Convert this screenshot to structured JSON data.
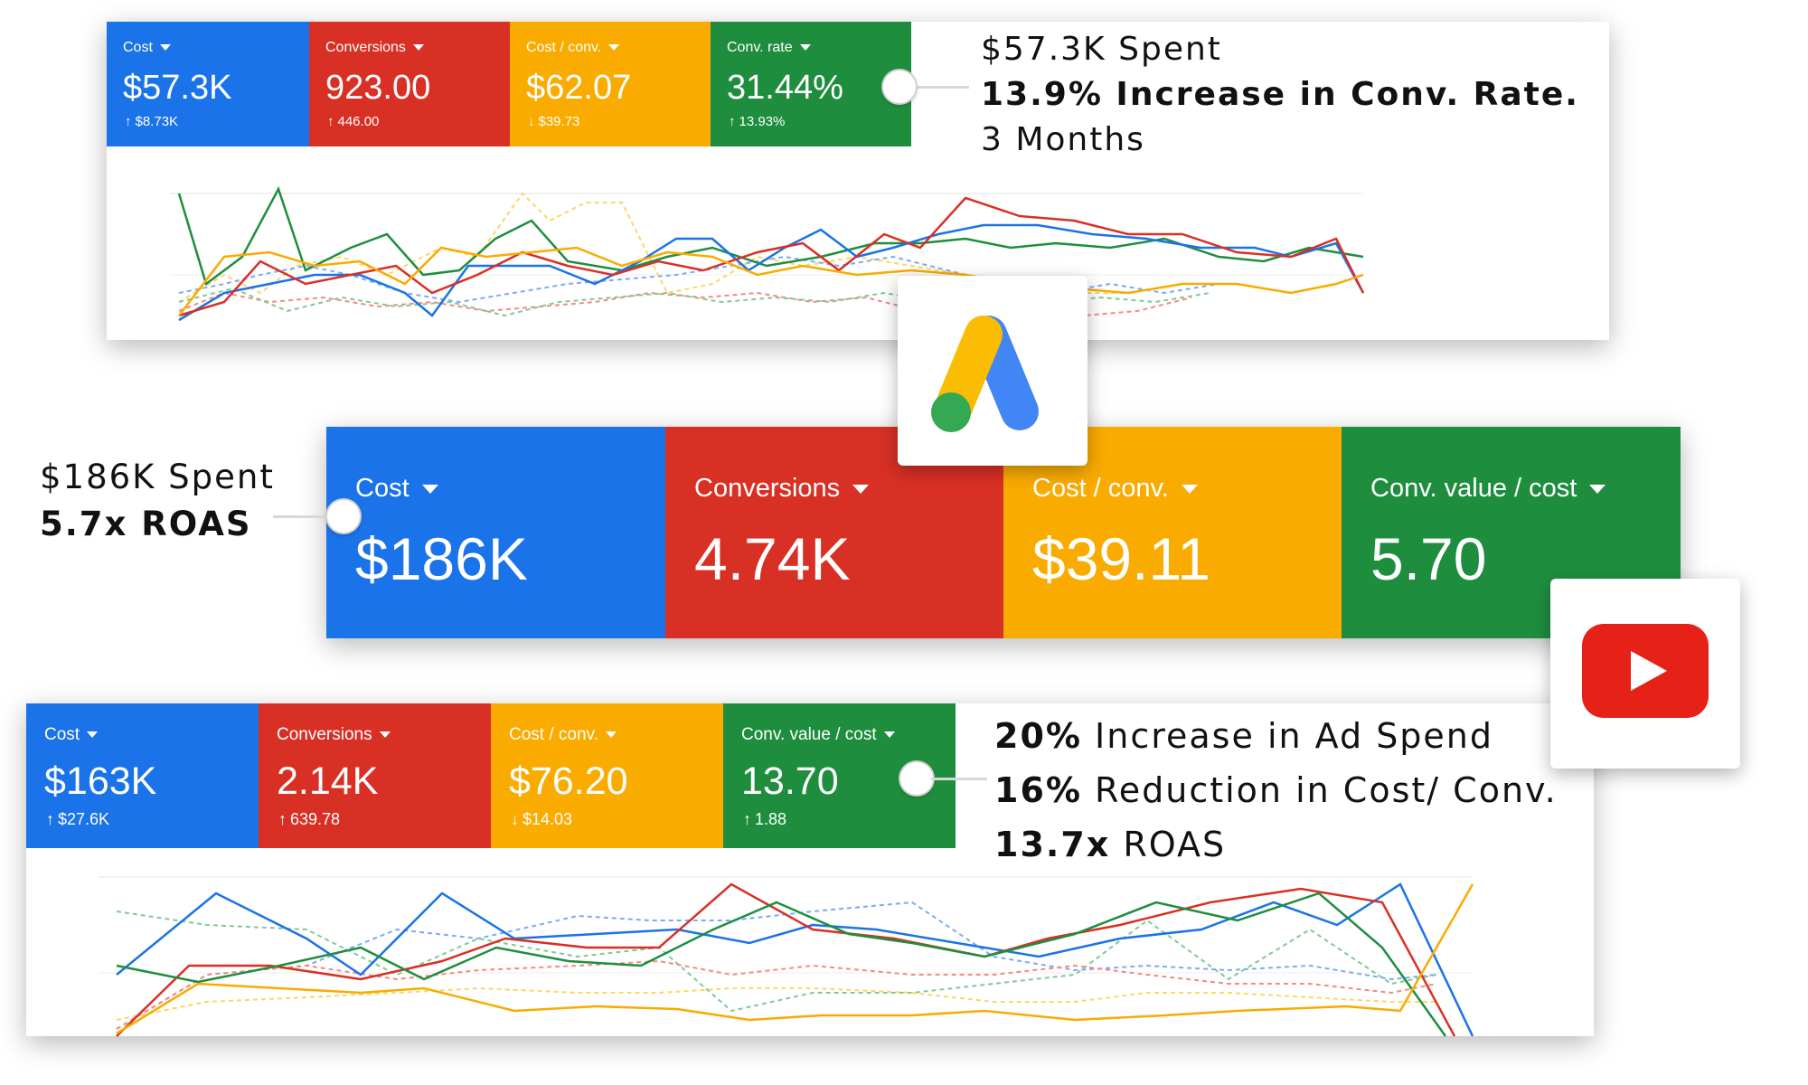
{
  "panel1": {
    "tiles": [
      {
        "label": "Cost",
        "value": "$57.3K",
        "change": "$8.73K",
        "dir": "up",
        "color": "#1a73e8"
      },
      {
        "label": "Conversions",
        "value": "923.00",
        "change": "446.00",
        "dir": "up",
        "color": "#d93025"
      },
      {
        "label": "Cost / conv.",
        "value": "$62.07",
        "change": "$39.73",
        "dir": "down",
        "color": "#f9ab00"
      },
      {
        "label": "Conv. rate",
        "value": "31.44%",
        "change": "13.93%",
        "dir": "up",
        "color": "#1e8e3e"
      }
    ],
    "annotation": {
      "line1": "$57.3K Spent",
      "line2": "13.9% Increase in Conv. Rate.",
      "line3": "3 Months"
    }
  },
  "panel2": {
    "tiles": [
      {
        "label": "Cost",
        "value": "$186K",
        "color": "#1a73e8"
      },
      {
        "label": "Conversions",
        "value": "4.74K",
        "color": "#d93025"
      },
      {
        "label": "Cost / conv.",
        "value": "$39.11",
        "color": "#f9ab00"
      },
      {
        "label": "Conv. value / cost",
        "value": "5.70",
        "color": "#1e8e3e"
      }
    ],
    "annotation": {
      "line1": "$186K Spent",
      "line2": "5.7x ROAS"
    }
  },
  "panel3": {
    "tiles": [
      {
        "label": "Cost",
        "value": "$163K",
        "change": "$27.6K",
        "dir": "up",
        "color": "#1a73e8"
      },
      {
        "label": "Conversions",
        "value": "2.14K",
        "change": "639.78",
        "dir": "up",
        "color": "#d93025"
      },
      {
        "label": "Cost / conv.",
        "value": "$76.20",
        "change": "$14.03",
        "dir": "down",
        "color": "#f9ab00"
      },
      {
        "label": "Conv. value / cost",
        "value": "13.70",
        "change": "1.88",
        "dir": "up",
        "color": "#1e8e3e"
      }
    ],
    "annotation": {
      "l1_bold": "20%",
      "l1_rest": " Increase in Ad Spend",
      "l2_bold": "16%",
      "l2_rest": " Reduction in Cost/ Conv.",
      "l3_bold": "13.7x",
      "l3_rest": " ROAS"
    }
  },
  "icons": {
    "google_ads": "google-ads-logo",
    "youtube": "youtube-logo"
  },
  "arrows": {
    "up": "↑",
    "down": "↓"
  },
  "colors": {
    "blue": "#1a73e8",
    "red": "#d93025",
    "yellow": "#f9ab00",
    "green": "#1e8e3e",
    "light_blue": "#7baaf7",
    "light_red": "#f28b82",
    "light_yellow": "#fdd663",
    "light_green": "#81c995"
  }
}
